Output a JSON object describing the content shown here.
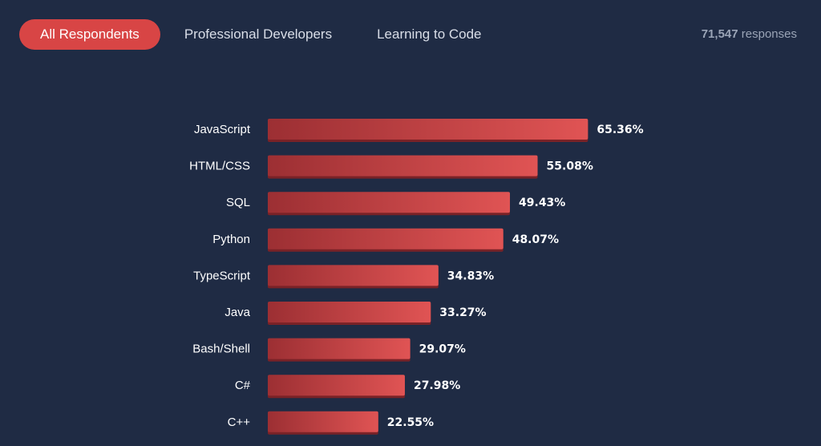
{
  "tabs": [
    {
      "label": "All Respondents",
      "active": true
    },
    {
      "label": "Professional Developers",
      "active": false
    },
    {
      "label": "Learning to Code",
      "active": false
    }
  ],
  "responses": {
    "count": "71,547",
    "suffix": "responses"
  },
  "colors": {
    "background": "#1f2b44",
    "accent": "#d84545",
    "bar_start": "#9c2f33",
    "bar_end": "#e05454"
  },
  "chart_data": {
    "type": "bar",
    "orientation": "horizontal",
    "categories": [
      "JavaScript",
      "HTML/CSS",
      "SQL",
      "Python",
      "TypeScript",
      "Java",
      "Bash/Shell",
      "C#",
      "C++"
    ],
    "values": [
      65.36,
      55.08,
      49.43,
      48.07,
      34.83,
      33.27,
      29.07,
      27.98,
      22.55
    ],
    "value_labels": [
      "65.36%",
      "55.08%",
      "49.43%",
      "48.07%",
      "34.83%",
      "33.27%",
      "29.07%",
      "27.98%",
      "22.55%"
    ],
    "unit": "%",
    "grid": false
  }
}
